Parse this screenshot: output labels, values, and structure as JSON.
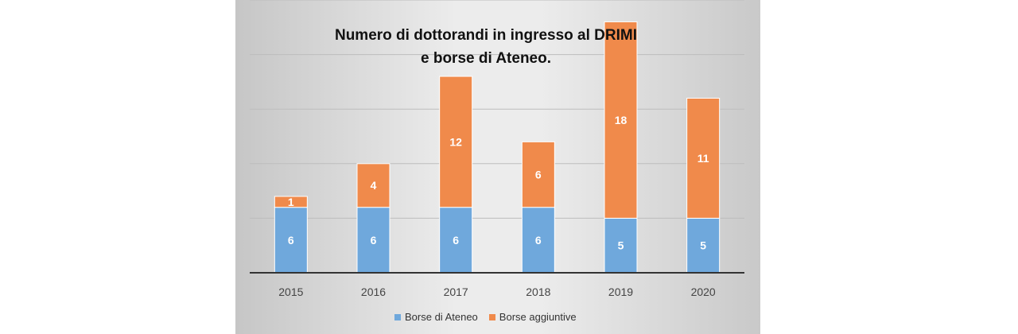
{
  "chart_data": {
    "type": "bar",
    "stacked": true,
    "title_lines": [
      "Numero di dottorandi in ingresso al DRIMI",
      "e borse di Ateneo."
    ],
    "categories": [
      "2015",
      "2016",
      "2017",
      "2018",
      "2019",
      "2020"
    ],
    "series": [
      {
        "name": "Borse di Ateneo",
        "color": "#6fa8dc",
        "values": [
          6,
          6,
          6,
          6,
          5,
          5
        ]
      },
      {
        "name": "Borse aggiuntive",
        "color": "#f08a4b",
        "values": [
          1,
          4,
          12,
          6,
          18,
          11
        ]
      }
    ],
    "ylim": [
      0,
      25
    ],
    "grid": true,
    "legend_position": "bottom",
    "data_labels": true
  }
}
